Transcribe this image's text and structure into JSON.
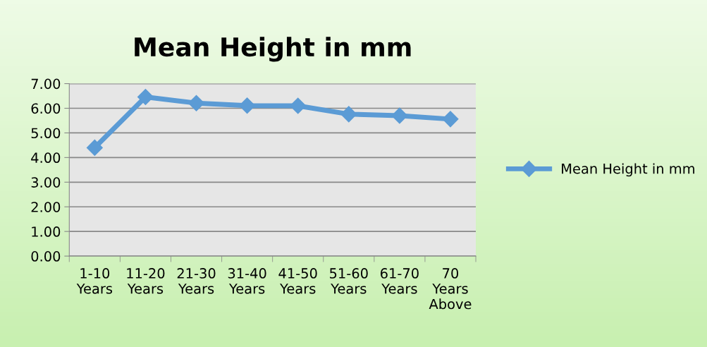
{
  "chart_data": {
    "type": "line",
    "title": "Mean Height in mm",
    "categories": [
      "1-10\nYears",
      "11-20\nYears",
      "21-30\nYears",
      "31-40\nYears",
      "41-50\nYears",
      "51-60\nYears",
      "61-70\nYears",
      "70\nYears\nAbove"
    ],
    "series": [
      {
        "name": "Mean Height in mm",
        "color": "#5b9bd5",
        "values": [
          4.4,
          6.46,
          6.21,
          6.11,
          6.1,
          5.76,
          5.7,
          5.56
        ]
      }
    ],
    "ylim": [
      0,
      7
    ],
    "yticks": [
      {
        "value": 0,
        "label": "0.00"
      },
      {
        "value": 1,
        "label": "1.00"
      },
      {
        "value": 2,
        "label": "2.00"
      },
      {
        "value": 3,
        "label": "3.00"
      },
      {
        "value": 4,
        "label": "4.00"
      },
      {
        "value": 5,
        "label": "5.00"
      },
      {
        "value": 6,
        "label": "6.00"
      },
      {
        "value": 7,
        "label": "7.00"
      }
    ],
    "grid": "y",
    "legend": "right",
    "marker": "diamond",
    "line_style": "solid"
  }
}
